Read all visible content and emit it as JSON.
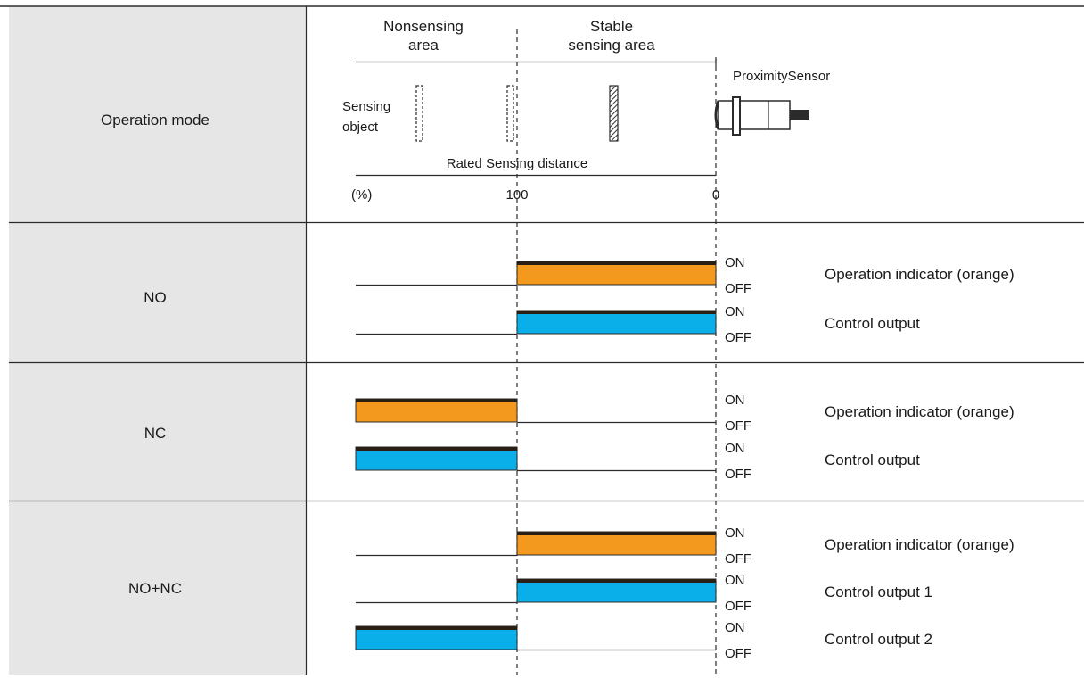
{
  "header": {
    "column_label": "Operation mode",
    "nonsensing_area": [
      "Nonsensing",
      "area"
    ],
    "stable_sensing_area": [
      "Stable",
      "sensing area"
    ],
    "sensor_label": "ProximitySensor",
    "object_label": [
      "Sensing",
      "object"
    ],
    "distance_label": "Rated Sensing distance",
    "unit": "(%)",
    "tick_100": "100",
    "tick_0": "0"
  },
  "state_labels": {
    "on": "ON",
    "off": "OFF"
  },
  "colors": {
    "orange": "#f39a1e",
    "blue": "#0aaee8",
    "header_fill": "#e6e6e7",
    "bar_top": "#2a1f14"
  },
  "modes": [
    {
      "name": "NO",
      "signals": [
        {
          "label": "Operation indicator (orange)",
          "color": "orange",
          "on_region": "stable"
        },
        {
          "label": "Control output",
          "color": "blue",
          "on_region": "stable"
        }
      ]
    },
    {
      "name": "NC",
      "signals": [
        {
          "label": "Operation indicator (orange)",
          "color": "orange",
          "on_region": "nonsensing"
        },
        {
          "label": "Control output",
          "color": "blue",
          "on_region": "nonsensing"
        }
      ]
    },
    {
      "name": "NO+NC",
      "signals": [
        {
          "label": "Operation indicator (orange)",
          "color": "orange",
          "on_region": "stable"
        },
        {
          "label": "Control output 1",
          "color": "blue",
          "on_region": "stable"
        },
        {
          "label": "Control output 2",
          "color": "blue",
          "on_region": "nonsensing"
        }
      ]
    }
  ]
}
